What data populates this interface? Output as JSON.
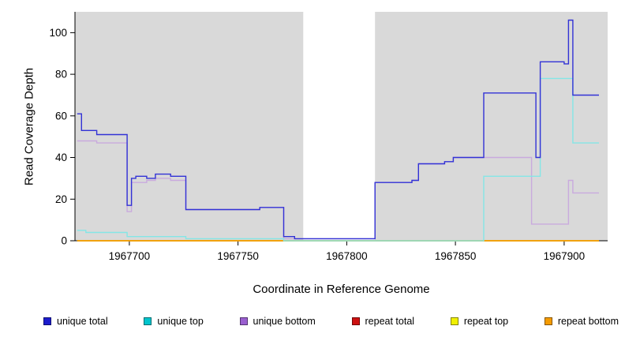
{
  "chart_data": {
    "type": "line",
    "step": true,
    "title": "",
    "xlabel": "Coordinate in Reference Genome",
    "ylabel": "Read Coverage Depth",
    "xlim": [
      1967675,
      1967920
    ],
    "ylim": [
      0,
      110
    ],
    "xticks": [
      1967700,
      1967750,
      1967800,
      1967850,
      1967900
    ],
    "yticks": [
      0,
      20,
      40,
      60,
      80,
      100
    ],
    "grid": false,
    "legend_position": "bottom",
    "panel_color": "#d9d9d9",
    "gap_region": {
      "start": 1967780,
      "end": 1967813,
      "color": "#ffffff"
    },
    "draw_order": [
      "repeat total",
      "repeat top",
      "repeat bottom",
      "unique bottom",
      "unique top",
      "unique total"
    ],
    "series": [
      {
        "name": "unique total",
        "color": "#1c1ccd",
        "line_color": "#3232d6",
        "steps": [
          [
            1967676,
            61
          ],
          [
            1967678,
            53
          ],
          [
            1967685,
            51
          ],
          [
            1967699,
            17
          ],
          [
            1967701,
            30
          ],
          [
            1967703,
            31
          ],
          [
            1967708,
            30
          ],
          [
            1967712,
            32
          ],
          [
            1967719,
            31
          ],
          [
            1967726,
            15
          ],
          [
            1967760,
            16
          ],
          [
            1967771,
            2
          ],
          [
            1967776,
            1
          ],
          [
            1967813,
            28
          ],
          [
            1967830,
            29
          ],
          [
            1967833,
            37
          ],
          [
            1967845,
            38
          ],
          [
            1967849,
            40
          ],
          [
            1967863,
            71
          ],
          [
            1967887,
            40
          ],
          [
            1967889,
            86
          ],
          [
            1967900,
            85
          ],
          [
            1967902,
            106
          ],
          [
            1967904,
            70
          ],
          [
            1967916,
            70
          ]
        ]
      },
      {
        "name": "unique top",
        "color": "#00c5cd",
        "line_color": "#84e6e6",
        "steps": [
          [
            1967676,
            5
          ],
          [
            1967680,
            4
          ],
          [
            1967699,
            2
          ],
          [
            1967726,
            1
          ],
          [
            1967771,
            0
          ],
          [
            1967863,
            31
          ],
          [
            1967889,
            78
          ],
          [
            1967904,
            47
          ],
          [
            1967916,
            47
          ]
        ]
      },
      {
        "name": "unique bottom",
        "color": "#9a5fd0",
        "line_color": "#c9aade",
        "steps": [
          [
            1967676,
            48
          ],
          [
            1967685,
            47
          ],
          [
            1967699,
            14
          ],
          [
            1967701,
            28
          ],
          [
            1967708,
            29
          ],
          [
            1967712,
            30
          ],
          [
            1967719,
            29
          ],
          [
            1967726,
            15
          ],
          [
            1967760,
            16
          ],
          [
            1967771,
            1
          ],
          [
            1967813,
            28
          ],
          [
            1967830,
            29
          ],
          [
            1967833,
            37
          ],
          [
            1967845,
            38
          ],
          [
            1967849,
            40
          ],
          [
            1967885,
            8
          ],
          [
            1967902,
            29
          ],
          [
            1967904,
            23
          ],
          [
            1967916,
            23
          ]
        ]
      },
      {
        "name": "repeat total",
        "color": "#cd1111",
        "line_color": "#cd1111",
        "steps": [
          [
            1967676,
            0
          ],
          [
            1967916,
            0
          ]
        ]
      },
      {
        "name": "repeat top",
        "color": "#f0f000",
        "line_color": "#f0f000",
        "steps": [
          [
            1967676,
            0
          ],
          [
            1967916,
            0
          ]
        ]
      },
      {
        "name": "repeat bottom",
        "color": "#f59b00",
        "line_color": "#f59b00",
        "steps": [
          [
            1967676,
            0
          ],
          [
            1967916,
            0
          ]
        ]
      }
    ]
  }
}
